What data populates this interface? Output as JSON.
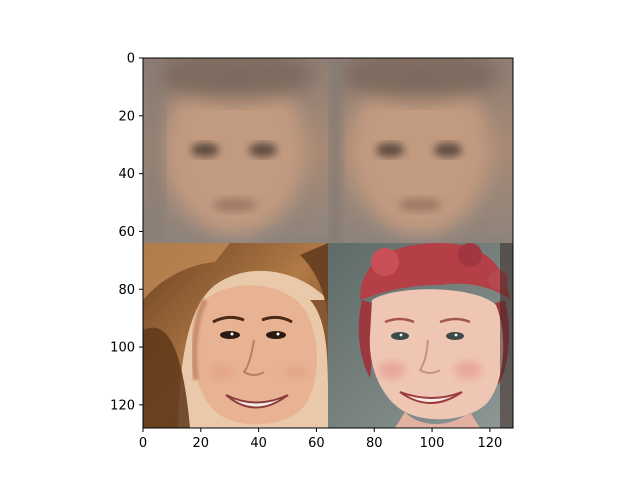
{
  "figure": {
    "x_axis": {
      "range": [
        0,
        128
      ],
      "ticks": [
        0,
        20,
        40,
        60,
        80,
        100,
        120
      ],
      "labels": [
        "0",
        "20",
        "40",
        "60",
        "80",
        "100",
        "120"
      ]
    },
    "y_axis": {
      "range": [
        0,
        128
      ],
      "inverted": true,
      "ticks": [
        0,
        20,
        40,
        60,
        80,
        100,
        120
      ],
      "labels": [
        "0",
        "20",
        "40",
        "60",
        "80",
        "100",
        "120"
      ]
    },
    "grid": false,
    "tiles": [
      {
        "name": "mean-face-blur",
        "col": 0,
        "row": 0
      },
      {
        "name": "mean-face-blur",
        "col": 1,
        "row": 0
      },
      {
        "name": "face-photo",
        "col": 0,
        "row": 1,
        "hair_color": "#8a5a34",
        "skin_color": "#e8b596"
      },
      {
        "name": "face-photo",
        "col": 1,
        "row": 1,
        "hair_color": "#b43f46",
        "skin_color": "#efc6b4"
      }
    ],
    "colors": {
      "blur_base": "#a08978",
      "blur_face": "#c89d80",
      "eye_shadow": "#5e4c40",
      "seam": "#8a8078"
    }
  }
}
